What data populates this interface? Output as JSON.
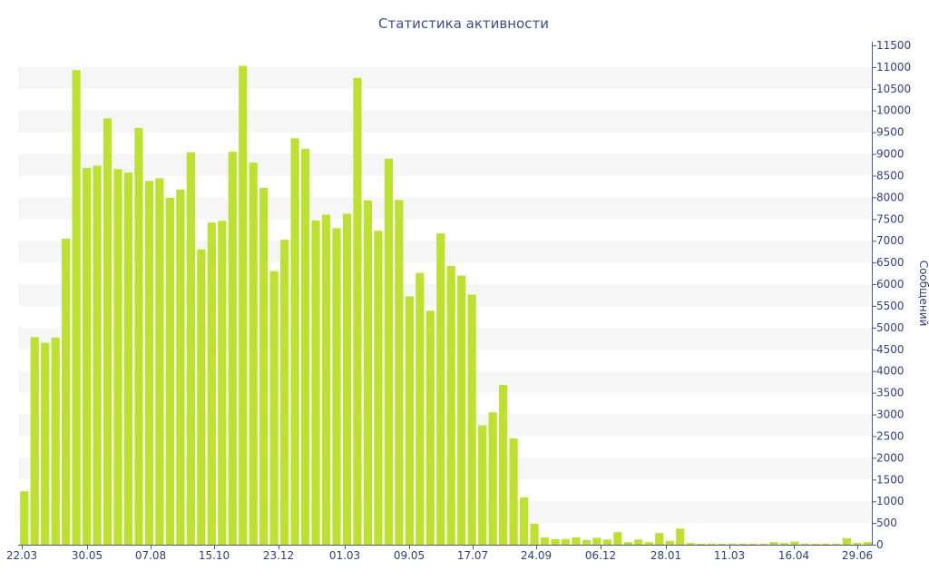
{
  "colors": {
    "bar": "#bce12f",
    "stripe": "#f6f6f6",
    "axis": "#4a5a8a",
    "text": "#33407a",
    "title": "#3a4f8a"
  },
  "chart_data": {
    "type": "bar",
    "title": "Статистика активности",
    "xlabel": "",
    "ylabel": "Сообщений",
    "ylim": [
      0,
      11500
    ],
    "y_ticks": [
      0,
      500,
      1000,
      1500,
      2000,
      2500,
      3000,
      3500,
      4000,
      4500,
      5000,
      5500,
      6000,
      6500,
      7000,
      7500,
      8000,
      8500,
      9000,
      9500,
      10000,
      10500,
      11000,
      11500
    ],
    "x_tick_labels": [
      "22.03",
      "30.05",
      "07.08",
      "15.10",
      "23.12",
      "01.03",
      "09.05",
      "17.07",
      "24.09",
      "06.12",
      "28.01",
      "11.03",
      "16.04",
      "29.06"
    ],
    "y_axis_position": "right",
    "grid": "alternating horizontal bands",
    "values": [
      1230,
      4780,
      4650,
      4770,
      7050,
      10930,
      8680,
      8730,
      9820,
      8650,
      8570,
      9600,
      8380,
      8440,
      7990,
      8180,
      9040,
      6800,
      7420,
      7460,
      9050,
      11030,
      8800,
      8220,
      6300,
      7020,
      9360,
      9120,
      7470,
      7600,
      7290,
      7620,
      10750,
      7930,
      7230,
      8890,
      7940,
      5720,
      6260,
      5390,
      7170,
      6420,
      6200,
      5760,
      2750,
      3050,
      3680,
      2450,
      1090,
      480,
      170,
      130,
      130,
      170,
      110,
      160,
      120,
      290,
      60,
      120,
      60,
      270,
      90,
      370,
      40,
      20,
      20,
      20,
      20,
      20,
      20,
      20,
      60,
      40,
      70,
      20,
      20,
      20,
      20,
      150,
      40,
      60
    ]
  }
}
